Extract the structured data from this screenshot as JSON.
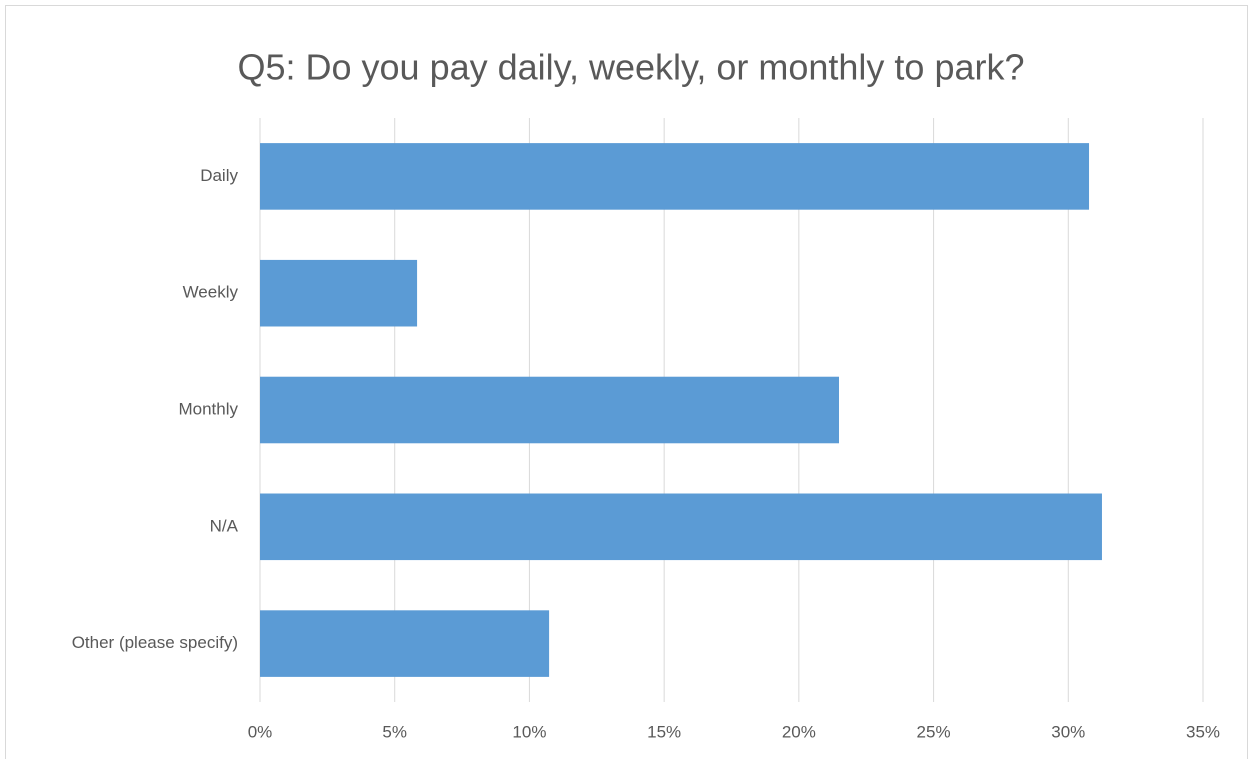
{
  "chart_data": {
    "type": "hbar",
    "title": "Q5: Do you pay daily, weekly, or monthly to park?",
    "categories": [
      "Daily",
      "Weekly",
      "Monthly",
      "N/A",
      "Other (please specify)"
    ],
    "values": [
      30.77,
      5.83,
      21.49,
      31.25,
      10.73
    ],
    "color": "#5b9bd5",
    "xlim": [
      0,
      35
    ],
    "xticks": [
      {
        "value": 0,
        "label": "0%"
      },
      {
        "value": 5,
        "label": "5%"
      },
      {
        "value": 10,
        "label": "10%"
      },
      {
        "value": 15,
        "label": "15%"
      },
      {
        "value": 20,
        "label": "20%"
      },
      {
        "value": 25,
        "label": "25%"
      },
      {
        "value": 30,
        "label": "30%"
      },
      {
        "value": 35,
        "label": "35%"
      }
    ],
    "grid": true
  }
}
